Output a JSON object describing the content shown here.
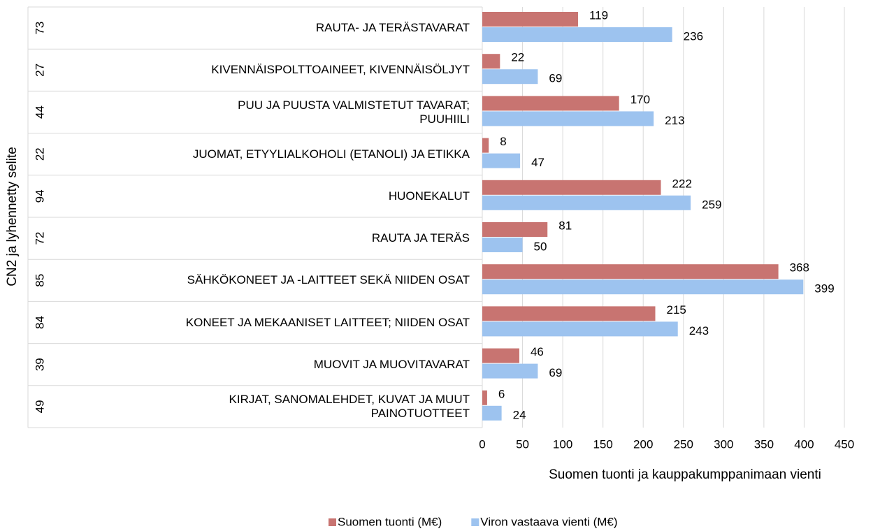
{
  "chart_data": {
    "type": "bar",
    "orientation": "horizontal",
    "y_axis_title": "CN2 ja lyhennetty selite",
    "x_axis_title": "Suomen tuonti ja kauppakumppanimaan vienti",
    "codes": [
      "73",
      "27",
      "44",
      "22",
      "94",
      "72",
      "85",
      "84",
      "39",
      "49"
    ],
    "categories": [
      "RAUTA- JA TERÄSTAVARAT",
      "KIVENNÄISPOLTTOAINEET, KIVENNÄISÖLJYT",
      "PUU JA PUUSTA VALMISTETUT TAVARAT;\nPUUHIILI",
      "JUOMAT, ETYYLIALKOHOLI (ETANOLI) JA ETIKKA",
      "HUONEKALUT",
      "RAUTA JA TERÄS",
      "SÄHKÖKONEET JA -LAITTEET SEKÄ NIIDEN OSAT",
      "KONEET JA MEKAANISET LAITTEET; NIIDEN OSAT",
      "MUOVIT JA MUOVITAVARAT",
      "KIRJAT, SANOMALEHDET, KUVAT JA MUUT\nPAINOTUOTTEET"
    ],
    "series": [
      {
        "name": "Suomen tuonti (M€)",
        "color": "#c87471",
        "values": [
          119,
          22,
          170,
          8,
          222,
          81,
          368,
          215,
          46,
          6
        ]
      },
      {
        "name": "Viron vastaava vienti (M€)",
        "color": "#9dc3ef",
        "values": [
          236,
          69,
          213,
          47,
          259,
          50,
          399,
          243,
          69,
          24
        ]
      }
    ],
    "xlim": [
      0,
      450
    ],
    "xticks": [
      0,
      50,
      100,
      150,
      200,
      250,
      300,
      350,
      400,
      450
    ],
    "grid": true,
    "legend": "bottom"
  }
}
